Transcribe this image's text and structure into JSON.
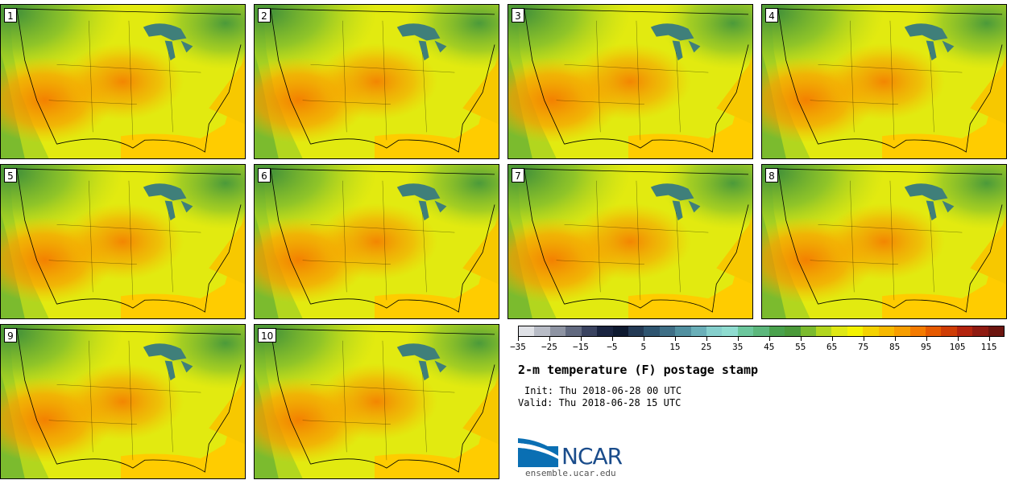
{
  "panels": [
    {
      "label": "1"
    },
    {
      "label": "2"
    },
    {
      "label": "3"
    },
    {
      "label": "4"
    },
    {
      "label": "5"
    },
    {
      "label": "6"
    },
    {
      "label": "7"
    },
    {
      "label": "8"
    },
    {
      "label": "9"
    },
    {
      "label": "10"
    }
  ],
  "colorbar": {
    "colors": [
      "#dfe1e6",
      "#b8bcc6",
      "#8e94a3",
      "#626a80",
      "#3a4360",
      "#1a2440",
      "#0e1a30",
      "#243a55",
      "#2f5570",
      "#3f6f86",
      "#5290a0",
      "#6aafb8",
      "#85cfcc",
      "#8fdcd0",
      "#6cc79d",
      "#5cb77c",
      "#4aa24d",
      "#4b9a3a",
      "#7bbb2e",
      "#b2d61e",
      "#dfe814",
      "#f4f200",
      "#f4d200",
      "#f7b900",
      "#f79e00",
      "#f47b00",
      "#e65a00",
      "#cf3d06",
      "#b3240e",
      "#8f1b12",
      "#6c150f"
    ],
    "tick_labels": [
      "−35",
      "−25",
      "−15",
      "−5",
      "5",
      "15",
      "25",
      "35",
      "45",
      "55",
      "65",
      "75",
      "85",
      "95",
      "105",
      "115"
    ],
    "min": -35,
    "max": 120,
    "step": 5
  },
  "title": "2-m temperature (F) postage stamp",
  "init": "Init: Thu 2018-06-28 00 UTC",
  "valid": "Valid: Thu 2018-06-28 15 UTC",
  "logo_text": "NCAR",
  "url": "ensemble.ucar.edu"
}
